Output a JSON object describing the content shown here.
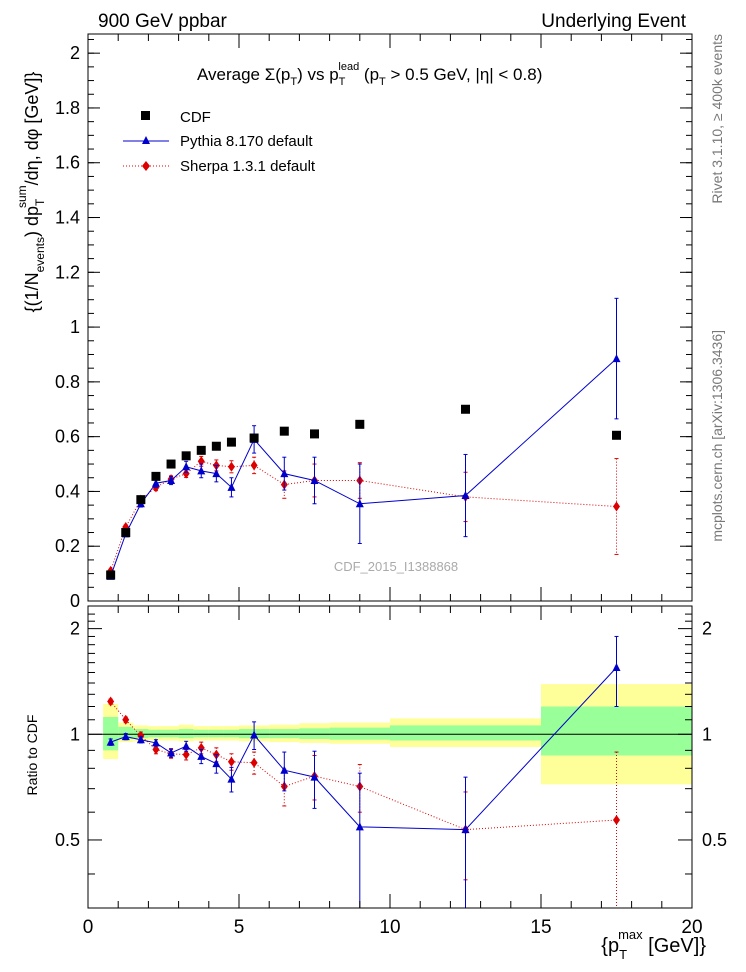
{
  "header": {
    "left": "900 GeV ppbar",
    "right": "Underlying Event"
  },
  "side": {
    "top": "Rivet 3.1.10, ≥ 400k events",
    "bottom": "mcplots.cern.ch [arXiv:1306.3436]"
  },
  "chart_data": [
    {
      "type": "scatter",
      "title": "Average Σ(p_T) vs p_T^lead (p_T > 0.5 GeV, |η| < 0.8)",
      "title_parts": {
        "a": "Average Σ(p",
        "a_sub": "T",
        "b": ") vs p",
        "b_sub": "T",
        "b_sup": "lead",
        "c": " (p",
        "c_sub": "T",
        "d": " > 0.5 GeV, |η| < 0.8)"
      },
      "ylabel": "{(1/N_events) dp_T^sum/dη, dφ [GeV]}",
      "ylabel_parts": {
        "a": "{(1/N",
        "a_sub": "events",
        "b": ") dp",
        "b_sub": "T",
        "b_sup": "sum",
        "c": "/dη, dφ [GeV]}"
      },
      "xlim": [
        0,
        20
      ],
      "ylim": [
        0,
        2.07
      ],
      "yticks": [
        0,
        0.2,
        0.4,
        0.6,
        0.8,
        1,
        1.2,
        1.4,
        1.6,
        1.8,
        2
      ],
      "ytick_labels": [
        "0",
        "0.2",
        "0.4",
        "0.6",
        "0.8",
        "1",
        "1.2",
        "1.4",
        "1.6",
        "1.8",
        "2"
      ],
      "watermark": "CDF_2015_I1388868",
      "legend_position": "top-left",
      "series": [
        {
          "name": "CDF",
          "color": "#000000",
          "marker": "square",
          "line": "none",
          "x": [
            0.75,
            1.25,
            1.75,
            2.25,
            2.75,
            3.25,
            3.75,
            4.25,
            4.75,
            5.5,
            6.5,
            7.5,
            9.0,
            12.5,
            17.5
          ],
          "y": [
            0.095,
            0.25,
            0.37,
            0.455,
            0.5,
            0.53,
            0.55,
            0.565,
            0.58,
            0.595,
            0.62,
            0.61,
            0.645,
            0.7,
            0.605
          ],
          "xerr": [
            0.25,
            0.25,
            0.25,
            0.25,
            0.25,
            0.25,
            0.25,
            0.25,
            0.25,
            0.5,
            0.5,
            0.5,
            1.0,
            2.5,
            2.5
          ]
        },
        {
          "name": "Pythia 8.170 default",
          "color": "#0000cc",
          "marker": "triangle",
          "line": "solid",
          "x": [
            0.75,
            1.25,
            1.75,
            2.25,
            2.75,
            3.25,
            3.75,
            4.25,
            4.75,
            5.5,
            6.5,
            7.5,
            9.0,
            12.5,
            17.5
          ],
          "y": [
            0.09,
            0.245,
            0.355,
            0.43,
            0.44,
            0.49,
            0.475,
            0.465,
            0.415,
            0.59,
            0.465,
            0.44,
            0.355,
            0.385,
            0.885
          ],
          "yerr": [
            0.005,
            0.01,
            0.012,
            0.015,
            0.015,
            0.02,
            0.025,
            0.03,
            0.035,
            0.05,
            0.06,
            0.085,
            0.145,
            0.15,
            0.22
          ]
        },
        {
          "name": "Sherpa 1.3.1 default",
          "color": "#dd0000",
          "marker": "diamond",
          "line": "dotted",
          "x": [
            0.75,
            1.25,
            1.75,
            2.25,
            2.75,
            3.25,
            3.75,
            4.25,
            4.75,
            5.5,
            6.5,
            7.5,
            9.0,
            12.5,
            17.5
          ],
          "y": [
            0.11,
            0.27,
            0.37,
            0.415,
            0.445,
            0.465,
            0.51,
            0.495,
            0.49,
            0.495,
            0.425,
            0.44,
            0.44,
            0.38,
            0.345
          ],
          "yerr": [
            0.005,
            0.008,
            0.01,
            0.012,
            0.012,
            0.014,
            0.018,
            0.02,
            0.022,
            0.03,
            0.05,
            0.06,
            0.065,
            0.09,
            0.175
          ]
        }
      ]
    },
    {
      "type": "scatter",
      "ylabel": "Ratio to CDF",
      "xlabel": "{p_T^max [GeV]}",
      "xlabel_parts": {
        "a": "{p",
        "a_sub": "T",
        "a_sup": "max",
        "b": " [GeV]}"
      },
      "xlim": [
        0,
        20
      ],
      "ylim": [
        0.32,
        2.32
      ],
      "xticks": [
        0,
        5,
        10,
        15,
        20
      ],
      "xtick_labels": [
        "0",
        "5",
        "10",
        "15",
        "20"
      ],
      "yticks": [
        0.5,
        1,
        2
      ],
      "ytick_labels": [
        "0.5",
        "1",
        "2"
      ],
      "reference_line": 1,
      "bands": [
        {
          "x0": 0.5,
          "x1": 1.0,
          "yellow": [
            0.85,
            1.22
          ],
          "green": [
            0.9,
            1.12
          ]
        },
        {
          "x0": 1.0,
          "x1": 1.5,
          "yellow": [
            0.95,
            1.08
          ],
          "green": [
            0.97,
            1.05
          ]
        },
        {
          "x0": 1.5,
          "x1": 2.0,
          "yellow": [
            0.955,
            1.06
          ],
          "green": [
            0.975,
            1.035
          ]
        },
        {
          "x0": 2.0,
          "x1": 2.5,
          "yellow": [
            0.96,
            1.055
          ],
          "green": [
            0.98,
            1.03
          ]
        },
        {
          "x0": 2.5,
          "x1": 3.0,
          "yellow": [
            0.96,
            1.055
          ],
          "green": [
            0.98,
            1.03
          ]
        },
        {
          "x0": 3.0,
          "x1": 3.5,
          "yellow": [
            0.955,
            1.065
          ],
          "green": [
            0.975,
            1.035
          ]
        },
        {
          "x0": 3.5,
          "x1": 4.0,
          "yellow": [
            0.96,
            1.055
          ],
          "green": [
            0.98,
            1.03
          ]
        },
        {
          "x0": 4.0,
          "x1": 4.5,
          "yellow": [
            0.96,
            1.055
          ],
          "green": [
            0.98,
            1.03
          ]
        },
        {
          "x0": 4.5,
          "x1": 5.0,
          "yellow": [
            0.96,
            1.055
          ],
          "green": [
            0.98,
            1.03
          ]
        },
        {
          "x0": 5.0,
          "x1": 6.0,
          "yellow": [
            0.955,
            1.06
          ],
          "green": [
            0.975,
            1.035
          ]
        },
        {
          "x0": 6.0,
          "x1": 7.0,
          "yellow": [
            0.95,
            1.065
          ],
          "green": [
            0.975,
            1.035
          ]
        },
        {
          "x0": 7.0,
          "x1": 8.0,
          "yellow": [
            0.945,
            1.075
          ],
          "green": [
            0.97,
            1.04
          ]
        },
        {
          "x0": 8.0,
          "x1": 10.0,
          "yellow": [
            0.94,
            1.08
          ],
          "green": [
            0.965,
            1.045
          ]
        },
        {
          "x0": 10.0,
          "x1": 15.0,
          "yellow": [
            0.92,
            1.11
          ],
          "green": [
            0.96,
            1.06
          ]
        },
        {
          "x0": 15.0,
          "x1": 20.0,
          "yellow": [
            0.72,
            1.39
          ],
          "green": [
            0.87,
            1.2
          ]
        }
      ],
      "series": [
        {
          "name": "Pythia 8.170 default",
          "color": "#0000cc",
          "marker": "triangle",
          "line": "solid",
          "x": [
            0.75,
            1.25,
            1.75,
            2.25,
            2.75,
            3.25,
            3.75,
            4.25,
            4.75,
            5.5,
            6.5,
            7.5,
            9.0,
            12.5,
            17.5
          ],
          "y": [
            0.95,
            0.985,
            0.965,
            0.945,
            0.885,
            0.925,
            0.865,
            0.825,
            0.745,
            0.995,
            0.79,
            0.755,
            0.545,
            0.535,
            1.55
          ],
          "yerr": [
            0.02,
            0.02,
            0.02,
            0.02,
            0.025,
            0.03,
            0.04,
            0.05,
            0.06,
            0.09,
            0.1,
            0.14,
            0.23,
            0.22,
            0.35
          ]
        },
        {
          "name": "Sherpa 1.3.1 default",
          "color": "#dd0000",
          "marker": "diamond",
          "line": "dotted",
          "x": [
            0.75,
            1.25,
            1.75,
            2.25,
            2.75,
            3.25,
            3.75,
            4.25,
            4.75,
            5.5,
            6.5,
            7.5,
            9.0,
            12.5,
            17.5
          ],
          "y": [
            1.24,
            1.1,
            0.99,
            0.905,
            0.88,
            0.875,
            0.915,
            0.875,
            0.835,
            0.83,
            0.71,
            0.76,
            0.71,
            0.535,
            0.57
          ],
          "yerr": [
            0.02,
            0.02,
            0.025,
            0.025,
            0.025,
            0.03,
            0.035,
            0.04,
            0.045,
            0.06,
            0.085,
            0.11,
            0.11,
            0.15,
            0.32
          ]
        }
      ]
    }
  ]
}
